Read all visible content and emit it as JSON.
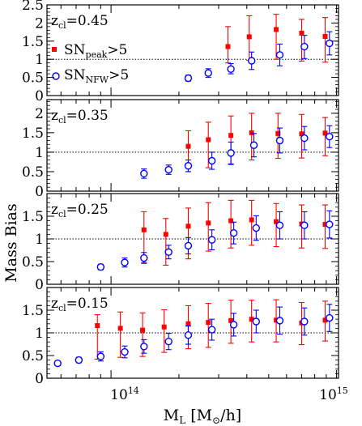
{
  "figure": {
    "ylabel": "Mass Bias",
    "xlabel_main": "M",
    "xlabel_sub": "L",
    "xlabel_unit_open": " [M",
    "xlabel_sun": "⊙",
    "xlabel_unit_close": "/h]",
    "xtick_labels": [
      {
        "value": 100000000000000.0,
        "base": "10",
        "exp": "14"
      },
      {
        "value": 1000000000000000.0,
        "base": "10",
        "exp": "15"
      }
    ],
    "legend": {
      "peak": {
        "main": "SN",
        "sub": "peak",
        "tail": ">5",
        "color": "#ff0000"
      },
      "nfw": {
        "main": "SN",
        "sub": "NFW",
        "tail": ">5",
        "color": "#0000ff"
      }
    }
  },
  "chart_data": [
    {
      "type": "scatter",
      "panel_label": {
        "main": "z",
        "sub": "cl",
        "tail": "=0.45"
      },
      "xscale": "log",
      "xlim": [
        52000000000000.0,
        1020000000000000.0
      ],
      "ylim": [
        0,
        2.5
      ],
      "yticks": [
        0,
        0.5,
        1,
        1.5,
        2,
        2.5
      ],
      "ytick_labels": [
        "0",
        "0.5",
        "1",
        "1.5",
        "2",
        "2.5"
      ],
      "reference_line": 1,
      "series": [
        {
          "name": "SN_peak>5",
          "color": "#ff0000",
          "marker": "square",
          "x": [
            330000000000000.0,
            410000000000000.0,
            540000000000000.0,
            700000000000000.0,
            890000000000000.0
          ],
          "y": [
            1.35,
            1.62,
            1.82,
            1.72,
            1.63
          ],
          "yerr_low": [
            0.45,
            0.65,
            0.82,
            0.77,
            0.71
          ],
          "yerr_high": [
            0.55,
            0.58,
            0.42,
            0.38,
            0.52
          ]
        },
        {
          "name": "SN_NFW>5",
          "color": "#0000ff",
          "marker": "circle",
          "x": [
            220000000000000.0,
            270000000000000.0,
            340000000000000.0,
            420000000000000.0,
            560000000000000.0,
            720000000000000.0,
            930000000000000.0
          ],
          "y": [
            0.48,
            0.62,
            0.73,
            0.96,
            1.12,
            1.35,
            1.44
          ],
          "yerr_low": [
            0.08,
            0.12,
            0.13,
            0.24,
            0.3,
            0.33,
            0.32
          ],
          "yerr_high": [
            0.08,
            0.12,
            0.15,
            0.24,
            0.3,
            0.31,
            0.32
          ]
        }
      ]
    },
    {
      "type": "scatter",
      "panel_label": {
        "main": "z",
        "sub": "cl",
        "tail": "=0.35"
      },
      "xscale": "log",
      "xlim": [
        52000000000000.0,
        1020000000000000.0
      ],
      "ylim": [
        0,
        2.35
      ],
      "yticks": [
        0,
        0.5,
        1,
        1.5,
        2
      ],
      "ytick_labels": [
        "0",
        "0.5",
        "1",
        "1.5",
        "2"
      ],
      "reference_line": 1,
      "series": [
        {
          "name": "SN_peak>5",
          "color": "#ff0000",
          "marker": "square",
          "x": [
            220000000000000.0,
            270000000000000.0,
            340000000000000.0,
            420000000000000.0,
            550000000000000.0,
            700000000000000.0,
            890000000000000.0
          ],
          "y": [
            1.15,
            1.32,
            1.43,
            1.5,
            1.48,
            1.47,
            1.49
          ],
          "yerr_low": [
            0.65,
            0.72,
            0.75,
            0.7,
            0.64,
            0.62,
            0.58
          ],
          "yerr_high": [
            0.4,
            0.45,
            0.5,
            0.5,
            0.52,
            0.5,
            0.4
          ]
        },
        {
          "name": "SN_NFW>5",
          "color": "#0000ff",
          "marker": "circle",
          "x": [
            140000000000000.0,
            180000000000000.0,
            220000000000000.0,
            280000000000000.0,
            340000000000000.0,
            430000000000000.0,
            560000000000000.0,
            720000000000000.0,
            930000000000000.0
          ],
          "y": [
            0.45,
            0.55,
            0.65,
            0.78,
            0.98,
            1.18,
            1.3,
            1.36,
            1.4
          ],
          "yerr_low": [
            0.12,
            0.12,
            0.15,
            0.22,
            0.28,
            0.3,
            0.32,
            0.3,
            0.28
          ],
          "yerr_high": [
            0.12,
            0.12,
            0.15,
            0.22,
            0.28,
            0.3,
            0.32,
            0.3,
            0.28
          ]
        }
      ]
    },
    {
      "type": "scatter",
      "panel_label": {
        "main": "z",
        "sub": "cl",
        "tail": "=0.25"
      },
      "xscale": "log",
      "xlim": [
        52000000000000.0,
        1020000000000000.0
      ],
      "ylim": [
        0,
        2.0
      ],
      "yticks": [
        0,
        0.5,
        1,
        1.5
      ],
      "ytick_labels": [
        "0",
        "0.5",
        "1",
        "1.5"
      ],
      "reference_line": 1,
      "series": [
        {
          "name": "SN_peak>5",
          "color": "#ff0000",
          "marker": "square",
          "x": [
            140000000000000.0,
            175000000000000.0,
            220000000000000.0,
            270000000000000.0,
            340000000000000.0,
            420000000000000.0,
            540000000000000.0,
            700000000000000.0,
            890000000000000.0
          ],
          "y": [
            1.2,
            1.1,
            1.28,
            1.35,
            1.4,
            1.42,
            1.38,
            1.33,
            1.32
          ],
          "yerr_low": [
            0.72,
            0.68,
            0.72,
            0.62,
            0.6,
            0.56,
            0.55,
            0.53,
            0.53
          ],
          "yerr_high": [
            0.4,
            0.35,
            0.4,
            0.45,
            0.45,
            0.43,
            0.4,
            0.42,
            0.43
          ]
        },
        {
          "name": "SN_NFW>5",
          "color": "#0000ff",
          "marker": "circle",
          "x": [
            90000000000000.0,
            115000000000000.0,
            140000000000000.0,
            180000000000000.0,
            220000000000000.0,
            280000000000000.0,
            350000000000000.0,
            440000000000000.0,
            560000000000000.0,
            720000000000000.0,
            930000000000000.0
          ],
          "y": [
            0.38,
            0.48,
            0.58,
            0.71,
            0.85,
            0.98,
            1.13,
            1.24,
            1.3,
            1.3,
            1.32
          ],
          "yerr_low": [
            0.06,
            0.1,
            0.12,
            0.15,
            0.18,
            0.22,
            0.24,
            0.27,
            0.3,
            0.3,
            0.3
          ],
          "yerr_high": [
            0.06,
            0.1,
            0.12,
            0.15,
            0.18,
            0.22,
            0.24,
            0.27,
            0.3,
            0.3,
            0.3
          ]
        }
      ]
    },
    {
      "type": "scatter",
      "panel_label": {
        "main": "z",
        "sub": "cl",
        "tail": "=0.15"
      },
      "xscale": "log",
      "xlim": [
        52000000000000.0,
        1020000000000000.0
      ],
      "ylim": [
        0,
        2.0
      ],
      "yticks": [
        0,
        0.5,
        1,
        1.5
      ],
      "ytick_labels": [
        "0",
        "0.5",
        "1",
        "1.5"
      ],
      "reference_line": 1,
      "series": [
        {
          "name": "SN_peak>5",
          "color": "#ff0000",
          "marker": "square",
          "x": [
            87000000000000.0,
            110000000000000.0,
            138000000000000.0,
            172000000000000.0,
            220000000000000.0,
            270000000000000.0,
            340000000000000.0,
            420000000000000.0,
            540000000000000.0,
            700000000000000.0,
            890000000000000.0
          ],
          "y": [
            1.16,
            1.1,
            1.06,
            1.13,
            1.2,
            1.23,
            1.27,
            1.3,
            1.28,
            1.22,
            1.28
          ],
          "yerr_low": [
            0.74,
            0.64,
            0.58,
            0.56,
            0.55,
            0.55,
            0.5,
            0.5,
            0.48,
            0.48,
            0.46
          ],
          "yerr_high": [
            0.24,
            0.36,
            0.38,
            0.38,
            0.4,
            0.42,
            0.45,
            0.42,
            0.45,
            0.45,
            0.42
          ]
        },
        {
          "name": "SN_NFW>5",
          "color": "#0000ff",
          "marker": "circle",
          "x": [
            58000000000000.0,
            72000000000000.0,
            90000000000000.0,
            115000000000000.0,
            140000000000000.0,
            180000000000000.0,
            220000000000000.0,
            280000000000000.0,
            350000000000000.0,
            440000000000000.0,
            560000000000000.0,
            720000000000000.0,
            930000000000000.0
          ],
          "y": [
            0.33,
            0.4,
            0.48,
            0.58,
            0.7,
            0.81,
            0.95,
            1.07,
            1.18,
            1.25,
            1.27,
            1.25,
            1.33
          ],
          "yerr_low": [
            0.05,
            0.06,
            0.1,
            0.13,
            0.15,
            0.18,
            0.2,
            0.23,
            0.25,
            0.25,
            0.3,
            0.3,
            0.3
          ],
          "yerr_high": [
            0.05,
            0.06,
            0.1,
            0.13,
            0.15,
            0.18,
            0.2,
            0.23,
            0.25,
            0.25,
            0.3,
            0.3,
            0.3
          ]
        }
      ]
    }
  ]
}
